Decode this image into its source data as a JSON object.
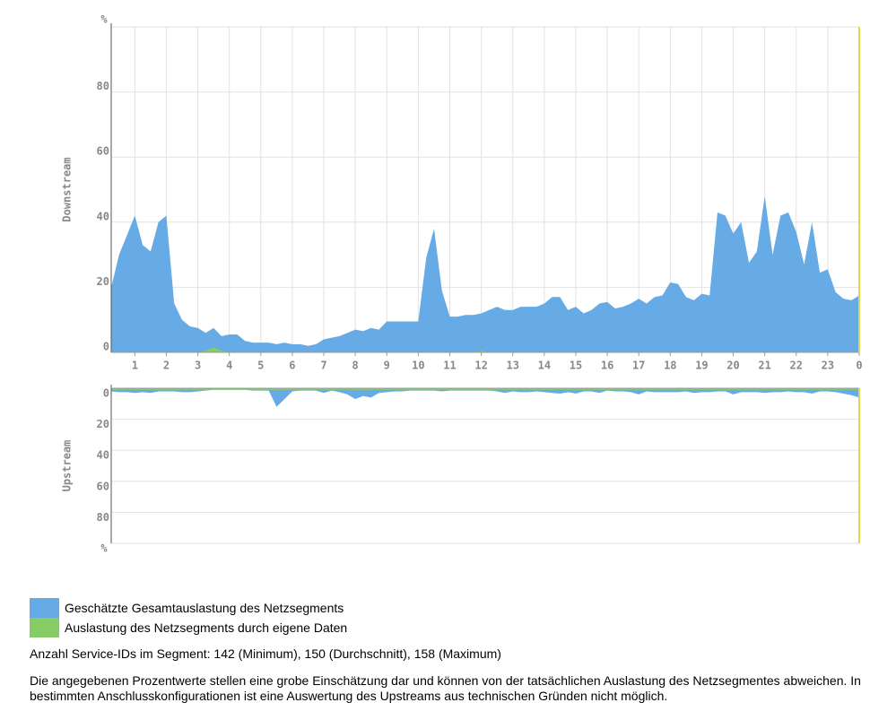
{
  "chart_data": [
    {
      "type": "area",
      "y_label": "Downstream",
      "y_unit": "%",
      "inverted": false,
      "grid": true,
      "x": [
        0.25,
        0.5,
        0.75,
        1,
        1.25,
        1.5,
        1.75,
        2,
        2.25,
        2.5,
        2.75,
        3,
        3.25,
        3.5,
        3.75,
        4,
        4.25,
        4.5,
        4.75,
        5,
        5.25,
        5.5,
        5.75,
        6,
        6.25,
        6.5,
        6.75,
        7,
        7.25,
        7.5,
        7.75,
        8,
        8.25,
        8.5,
        8.75,
        9,
        9.25,
        9.5,
        9.75,
        10,
        10.25,
        10.5,
        10.75,
        11,
        11.25,
        11.5,
        11.75,
        12,
        12.25,
        12.5,
        12.75,
        13,
        13.25,
        13.5,
        13.75,
        14,
        14.25,
        14.5,
        14.75,
        15,
        15.25,
        15.5,
        15.75,
        16,
        16.25,
        16.5,
        16.75,
        17,
        17.25,
        17.5,
        17.75,
        18,
        18.25,
        18.5,
        18.75,
        19,
        19.25,
        19.5,
        19.75,
        20,
        20.25,
        20.5,
        20.75,
        21,
        21.25,
        21.5,
        21.75,
        22,
        22.25,
        22.5,
        22.75,
        23,
        23.25,
        23.5,
        23.75,
        24
      ],
      "xlim": [
        0.25,
        24
      ],
      "xticks": [
        1,
        2,
        3,
        4,
        5,
        6,
        7,
        8,
        9,
        10,
        11,
        12,
        13,
        14,
        15,
        16,
        17,
        18,
        19,
        20,
        21,
        22,
        23,
        {
          "value": 24,
          "label": "0"
        }
      ],
      "ylim": [
        0,
        100
      ],
      "yticks": [
        0,
        20,
        40,
        60,
        80
      ],
      "series": [
        {
          "name": "Geschätzte Gesamtauslastung des Netzsegments",
          "color": "#66abe6",
          "values": [
            20,
            30,
            36,
            42,
            33,
            31,
            40,
            42,
            15,
            10,
            8,
            7.5,
            6,
            7.5,
            5,
            5.5,
            5.5,
            3.5,
            3,
            3,
            3,
            2.5,
            3,
            2.5,
            2.5,
            2,
            2.5,
            4,
            4.5,
            5,
            6,
            7,
            6.5,
            7.5,
            7,
            9.5,
            9.5,
            9.5,
            9.5,
            9.5,
            29,
            38,
            19,
            11,
            11,
            11.5,
            11.5,
            12,
            13,
            14,
            13,
            13,
            14,
            14,
            14,
            15,
            17,
            17,
            13,
            14,
            12,
            13,
            15,
            15.5,
            13.5,
            14,
            15,
            16.5,
            15,
            17,
            17.5,
            21.5,
            21,
            17,
            16,
            18,
            17.5,
            43,
            42,
            36.5,
            40,
            27.5,
            31,
            48,
            30,
            42,
            43,
            37,
            27,
            40,
            24.5,
            25.5,
            18.5,
            16.5,
            16,
            17.5
          ]
        },
        {
          "name": "Auslastung des Netzsegments durch eigene Daten",
          "color": "#88cc66",
          "values": [
            0,
            0,
            0,
            0,
            0,
            0,
            0,
            0,
            0,
            0,
            0,
            0,
            0.5,
            1.5,
            0.5,
            0,
            0,
            0,
            0,
            0,
            0,
            0,
            0,
            0,
            0,
            0,
            0,
            0,
            0,
            0,
            0,
            0,
            0,
            0,
            0,
            0,
            0,
            0,
            0,
            0,
            0,
            0,
            0,
            0,
            0,
            0,
            0,
            0.5,
            0,
            0,
            0,
            0,
            0,
            0,
            0,
            0,
            0,
            0,
            0,
            0,
            0,
            0,
            0,
            0,
            0,
            0,
            0,
            0,
            0,
            0,
            0,
            0,
            0,
            0,
            0,
            0,
            0,
            0,
            0,
            0,
            0,
            0,
            0,
            0,
            0,
            0,
            0,
            0,
            0,
            0,
            0,
            0,
            0,
            0,
            0,
            0
          ]
        }
      ]
    },
    {
      "type": "area",
      "y_label": "Upstream",
      "y_unit": "%",
      "inverted": true,
      "grid": true,
      "x": [
        0.25,
        0.5,
        0.75,
        1,
        1.25,
        1.5,
        1.75,
        2,
        2.25,
        2.5,
        2.75,
        3,
        3.25,
        3.5,
        3.75,
        4,
        4.25,
        4.5,
        4.75,
        5,
        5.25,
        5.5,
        5.75,
        6,
        6.25,
        6.5,
        6.75,
        7,
        7.25,
        7.5,
        7.75,
        8,
        8.25,
        8.5,
        8.75,
        9,
        9.25,
        9.5,
        9.75,
        10,
        10.25,
        10.5,
        10.75,
        11,
        11.25,
        11.5,
        11.75,
        12,
        12.25,
        12.5,
        12.75,
        13,
        13.25,
        13.5,
        13.75,
        14,
        14.25,
        14.5,
        14.75,
        15,
        15.25,
        15.5,
        15.75,
        16,
        16.25,
        16.5,
        16.75,
        17,
        17.25,
        17.5,
        17.75,
        18,
        18.25,
        18.5,
        18.75,
        19,
        19.25,
        19.5,
        19.75,
        20,
        20.25,
        20.5,
        20.75,
        21,
        21.25,
        21.5,
        21.75,
        22,
        22.25,
        22.5,
        22.75,
        23,
        23.25,
        23.5,
        23.75,
        24
      ],
      "xlim": [
        0.25,
        24
      ],
      "ylim": [
        0,
        100
      ],
      "yticks": [
        0,
        20,
        40,
        60,
        80
      ],
      "series": [
        {
          "color": "#66abe6",
          "values": [
            2,
            2.5,
            2.5,
            3,
            2.5,
            3,
            2,
            2,
            2,
            2.5,
            2.5,
            2,
            1.5,
            1,
            1,
            1,
            1,
            1,
            1.5,
            1.5,
            1.5,
            12,
            7,
            2,
            1.5,
            1.5,
            1.5,
            3,
            1.5,
            2.5,
            4,
            7,
            5,
            6,
            3,
            2.5,
            2,
            2,
            1.5,
            1.5,
            1.5,
            1.5,
            2,
            1.5,
            1.5,
            1.5,
            1.5,
            1.5,
            1.5,
            2,
            3,
            2,
            2.5,
            2.5,
            2,
            2.5,
            3,
            3.5,
            2.5,
            3.5,
            2,
            2,
            3,
            1.5,
            2,
            2,
            2.5,
            4,
            2,
            2.5,
            2.5,
            2.5,
            2.5,
            2,
            3,
            2.5,
            2.5,
            2,
            2,
            4,
            2.5,
            2.5,
            2.5,
            3,
            2.5,
            2.5,
            2,
            2.5,
            2.5,
            3.5,
            2,
            2,
            2.5,
            3.5,
            4.5,
            6
          ]
        },
        {
          "color": "#88cc66",
          "values": [
            1,
            1,
            1,
            1,
            1,
            1,
            1,
            1,
            1,
            1,
            1,
            1,
            1,
            1,
            1,
            1,
            1,
            1,
            1,
            1,
            1,
            1,
            1,
            1,
            1,
            1,
            1,
            1,
            1,
            1,
            1,
            1,
            1,
            1,
            1,
            1,
            1,
            1,
            1,
            1,
            1,
            1,
            1,
            1,
            1,
            1,
            1,
            1,
            1,
            1,
            1,
            1,
            1,
            1,
            1,
            1,
            1,
            1,
            1,
            1,
            1,
            1,
            1,
            1,
            1,
            1,
            1,
            1,
            1,
            1,
            1,
            1,
            1,
            1,
            1,
            1,
            1,
            1,
            1,
            1,
            1,
            1,
            1,
            1,
            1,
            1,
            1,
            1,
            1,
            1,
            1,
            1,
            1,
            1,
            1,
            1
          ]
        }
      ]
    }
  ],
  "service_ids": "Anzahl Service-IDs im Segment: 142 (Minimum), 150 (Durchschnitt), 158 (Maximum)",
  "disclaimer": "Die angegebenen Prozentwerte stellen eine grobe Einschätzung dar und können von der tatsächlichen Auslastung des Netzsegmentes abweichen. In bestimmten Anschlusskonfigurationen ist eine Auswertung des Upstreams aus technischen Gründen nicht möglich."
}
